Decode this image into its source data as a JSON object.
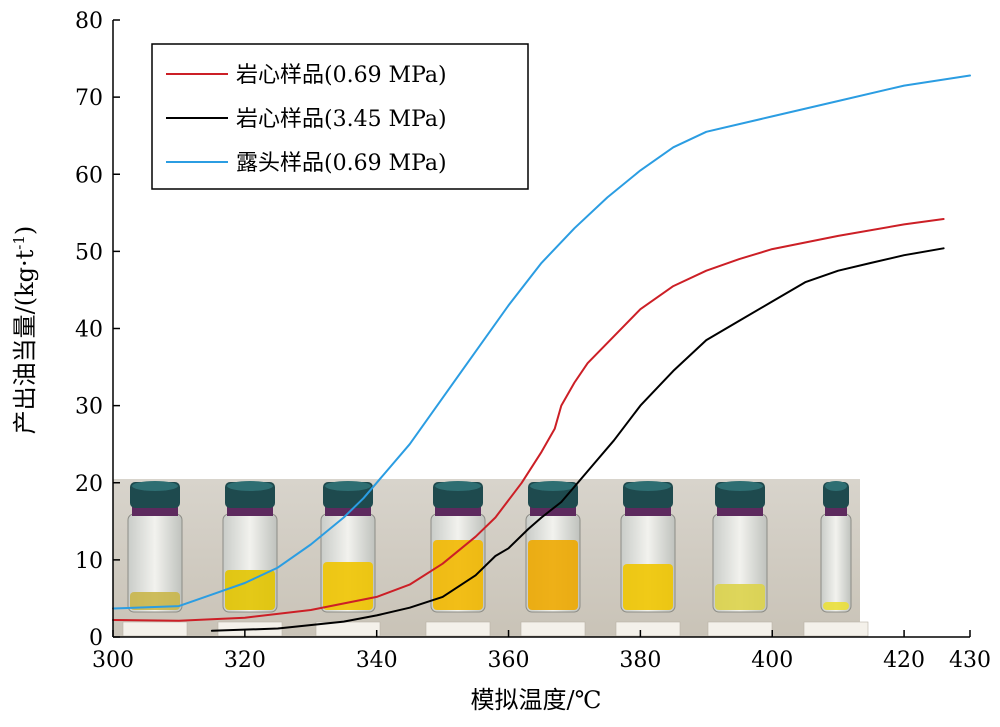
{
  "chart_data": {
    "type": "line",
    "xlabel": "模拟温度/℃",
    "ylabel": "产出油当量/(kg·t",
    "ylabel_sup": "-1",
    "ylabel_close": ")",
    "xlim": [
      300,
      430
    ],
    "ylim": [
      0,
      80
    ],
    "x_ticks": [
      300,
      320,
      340,
      360,
      380,
      400,
      420,
      430
    ],
    "y_ticks": [
      0,
      10,
      20,
      30,
      40,
      50,
      60,
      70,
      80
    ],
    "grid": false,
    "legend_position": "top-left",
    "series": [
      {
        "name": "岩心样品(0.69 MPa)",
        "color": "#cc1f26",
        "points": [
          [
            300,
            2.2
          ],
          [
            310,
            2.1
          ],
          [
            320,
            2.5
          ],
          [
            330,
            3.5
          ],
          [
            340,
            5.2
          ],
          [
            345,
            6.8
          ],
          [
            350,
            9.5
          ],
          [
            355,
            13
          ],
          [
            358,
            15.5
          ],
          [
            362,
            20
          ],
          [
            365,
            24
          ],
          [
            367,
            27
          ],
          [
            368,
            30
          ],
          [
            370,
            33
          ],
          [
            372,
            35.5
          ],
          [
            376,
            39
          ],
          [
            380,
            42.5
          ],
          [
            385,
            45.5
          ],
          [
            390,
            47.5
          ],
          [
            395,
            49
          ],
          [
            400,
            50.3
          ],
          [
            410,
            52
          ],
          [
            420,
            53.5
          ],
          [
            426,
            54.2
          ]
        ]
      },
      {
        "name": "岩心样品(3.45 MPa)",
        "color": "#000000",
        "points": [
          [
            315,
            0.8
          ],
          [
            325,
            1.1
          ],
          [
            335,
            2
          ],
          [
            340,
            2.8
          ],
          [
            345,
            3.8
          ],
          [
            350,
            5.2
          ],
          [
            355,
            8
          ],
          [
            358,
            10.5
          ],
          [
            360,
            11.5
          ],
          [
            363,
            14
          ],
          [
            365,
            15.5
          ],
          [
            368,
            17.5
          ],
          [
            370,
            19.5
          ],
          [
            373,
            22.5
          ],
          [
            376,
            25.5
          ],
          [
            380,
            30
          ],
          [
            385,
            34.5
          ],
          [
            390,
            38.5
          ],
          [
            395,
            41
          ],
          [
            400,
            43.5
          ],
          [
            405,
            46
          ],
          [
            410,
            47.5
          ],
          [
            415,
            48.5
          ],
          [
            420,
            49.5
          ],
          [
            426,
            50.4
          ]
        ]
      },
      {
        "name": "露头样品(0.69 MPa)",
        "color": "#2b9de2",
        "points": [
          [
            300,
            3.7
          ],
          [
            310,
            4
          ],
          [
            315,
            5.5
          ],
          [
            320,
            7
          ],
          [
            325,
            9
          ],
          [
            330,
            12
          ],
          [
            335,
            15.5
          ],
          [
            338,
            18
          ],
          [
            340,
            20
          ],
          [
            345,
            25
          ],
          [
            350,
            31
          ],
          [
            355,
            37
          ],
          [
            360,
            43
          ],
          [
            365,
            48.5
          ],
          [
            370,
            53
          ],
          [
            375,
            57
          ],
          [
            380,
            60.5
          ],
          [
            385,
            63.5
          ],
          [
            390,
            65.5
          ],
          [
            400,
            67.5
          ],
          [
            410,
            69.5
          ],
          [
            420,
            71.5
          ],
          [
            430,
            72.8
          ]
        ]
      }
    ]
  }
}
